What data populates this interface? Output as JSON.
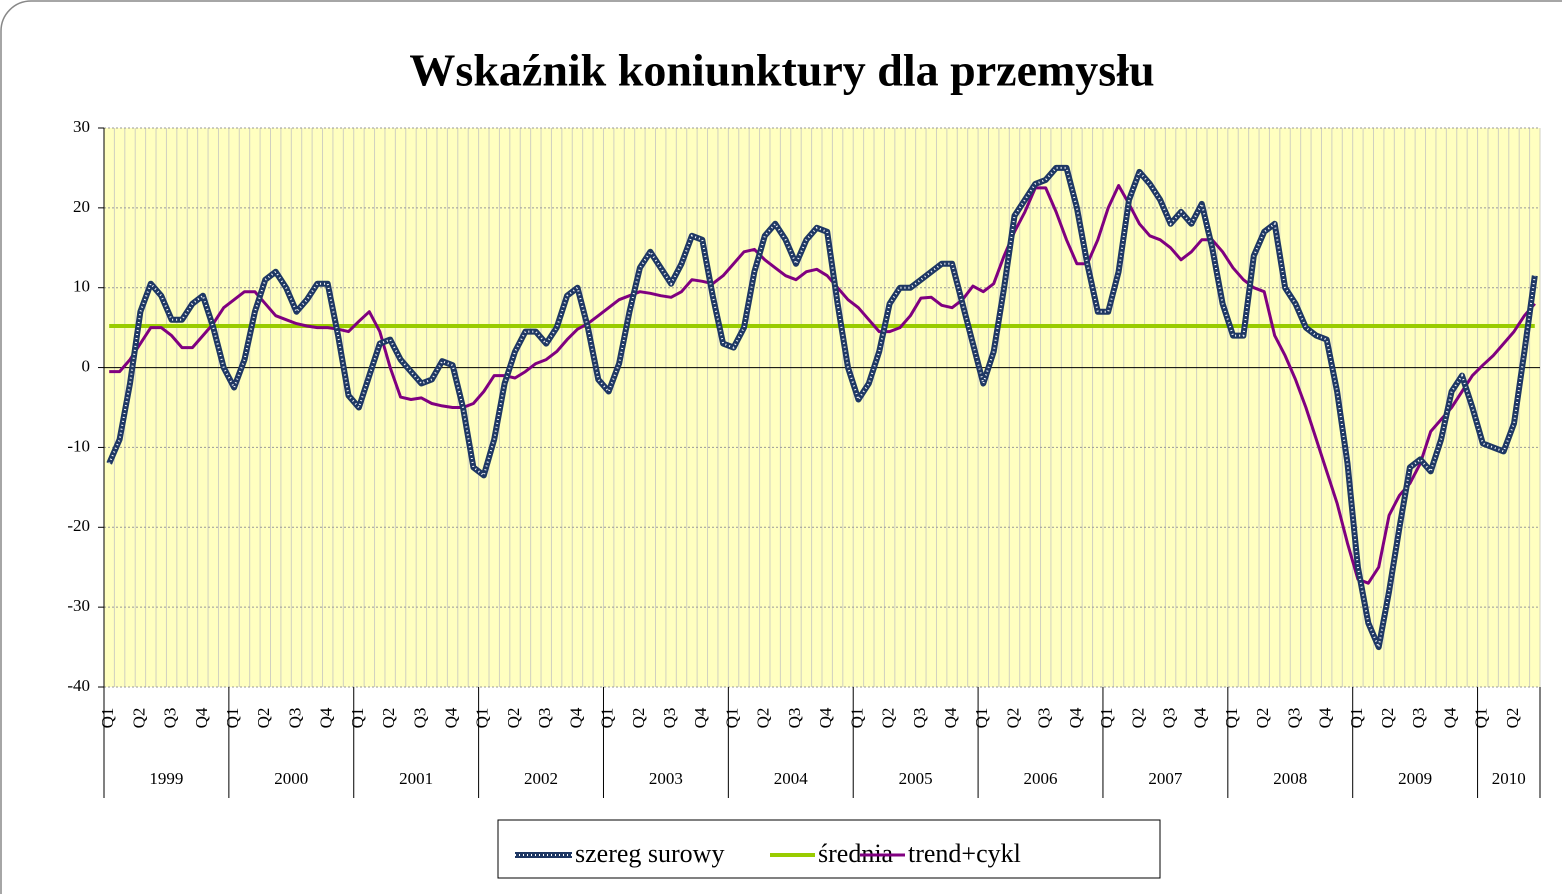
{
  "chart_data": {
    "type": "line",
    "title": "Wskaźnik koniunktury dla przemysłu",
    "categories": [
      "Q1",
      null,
      null,
      "Q2",
      null,
      null,
      "Q3",
      null,
      null,
      "Q4",
      null,
      null,
      "Q1",
      null,
      null,
      "Q2",
      null,
      null,
      "Q3",
      null,
      null,
      "Q4",
      null,
      null,
      "Q1",
      null,
      null,
      "Q2",
      null,
      null,
      "Q3",
      null,
      null,
      "Q4",
      null,
      null,
      "Q1",
      null,
      null,
      "Q2",
      null,
      null,
      "Q3",
      null,
      null,
      "Q4",
      null,
      null,
      "Q1",
      null,
      null,
      "Q2",
      null,
      null,
      "Q3",
      null,
      null,
      "Q4",
      null,
      null,
      "Q1",
      null,
      null,
      "Q2",
      null,
      null,
      "Q3",
      null,
      null,
      "Q4",
      null,
      null,
      "Q1",
      null,
      null,
      "Q2",
      null,
      null,
      "Q3",
      null,
      null,
      "Q4",
      null,
      null,
      "Q1",
      null,
      null,
      "Q2",
      null,
      null,
      "Q3",
      null,
      null,
      "Q4",
      null,
      null,
      "Q1",
      null,
      null,
      "Q2",
      null,
      null,
      "Q3",
      null,
      null,
      "Q4",
      null,
      null,
      "Q1",
      null,
      null,
      "Q2",
      null,
      null,
      "Q3",
      null,
      null,
      "Q4",
      null,
      null,
      "Q1",
      null,
      null,
      "Q2",
      null,
      null,
      "Q3",
      null,
      null,
      "Q4",
      null,
      null,
      "Q1",
      null,
      null,
      "Q2",
      null,
      null
    ],
    "years": [
      "1999",
      "2000",
      "2001",
      "2002",
      "2003",
      "2004",
      "2005",
      "2006",
      "2007",
      "2008",
      "2009",
      "2010"
    ],
    "series": [
      {
        "name": "szereg surowy",
        "color": "#1f3864",
        "values": [
          -12,
          -9,
          -2,
          7,
          10.5,
          9,
          6,
          6,
          8,
          9,
          5,
          0,
          -2.5,
          1,
          7,
          11,
          12,
          10,
          7,
          8.5,
          10.5,
          10.5,
          4,
          -3.5,
          -5,
          -1,
          3,
          3.5,
          1,
          -0.5,
          -2,
          -1.5,
          0.8,
          0.3,
          -5,
          -12.5,
          -13.5,
          -9,
          -2,
          2,
          4.5,
          4.5,
          3,
          5,
          9,
          10,
          5,
          -1.5,
          -3,
          0.5,
          7,
          12.5,
          14.5,
          12.5,
          10.5,
          13,
          16.5,
          16,
          9,
          3,
          2.5,
          5,
          12,
          16.5,
          18,
          16,
          13,
          16,
          17.5,
          17,
          8,
          0,
          -4,
          -2,
          2,
          8,
          10,
          10,
          11,
          12,
          13,
          13,
          8,
          3,
          -2,
          2,
          10,
          19,
          21,
          23,
          23.5,
          25,
          25,
          20,
          13,
          7,
          7,
          12,
          21,
          24.5,
          23,
          21,
          18,
          19.5,
          18,
          20.5,
          15,
          8,
          4,
          4,
          14,
          17,
          18,
          10,
          8,
          5,
          4,
          3.5,
          -3,
          -12,
          -25,
          -32,
          -35,
          -28,
          -20,
          -12.5,
          -11.5,
          -13,
          -9,
          -3,
          -1,
          -5,
          -9.5,
          -10,
          -10.5,
          -7,
          2,
          11.5
        ]
      },
      {
        "name": "średnia",
        "color": "#99cc00",
        "values": [
          5.2,
          5.2,
          5.2,
          5.2,
          5.2,
          5.2,
          5.2,
          5.2,
          5.2,
          5.2,
          5.2,
          5.2,
          5.2,
          5.2,
          5.2,
          5.2,
          5.2,
          5.2,
          5.2,
          5.2,
          5.2,
          5.2,
          5.2,
          5.2,
          5.2,
          5.2,
          5.2,
          5.2,
          5.2,
          5.2,
          5.2,
          5.2,
          5.2,
          5.2,
          5.2,
          5.2,
          5.2,
          5.2,
          5.2,
          5.2,
          5.2,
          5.2,
          5.2,
          5.2,
          5.2,
          5.2,
          5.2,
          5.2,
          5.2,
          5.2,
          5.2,
          5.2,
          5.2,
          5.2,
          5.2,
          5.2,
          5.2,
          5.2,
          5.2,
          5.2,
          5.2,
          5.2,
          5.2,
          5.2,
          5.2,
          5.2,
          5.2,
          5.2,
          5.2,
          5.2,
          5.2,
          5.2,
          5.2,
          5.2,
          5.2,
          5.2,
          5.2,
          5.2,
          5.2,
          5.2,
          5.2,
          5.2,
          5.2,
          5.2,
          5.2,
          5.2,
          5.2,
          5.2,
          5.2,
          5.2,
          5.2,
          5.2,
          5.2,
          5.2,
          5.2,
          5.2,
          5.2,
          5.2,
          5.2,
          5.2,
          5.2,
          5.2,
          5.2,
          5.2,
          5.2,
          5.2,
          5.2,
          5.2,
          5.2,
          5.2,
          5.2,
          5.2,
          5.2,
          5.2,
          5.2,
          5.2,
          5.2,
          5.2,
          5.2,
          5.2,
          5.2,
          5.2,
          5.2,
          5.2,
          5.2,
          5.2,
          5.2,
          5.2,
          5.2,
          5.2,
          5.2,
          5.2,
          5.2,
          5.2,
          5.2,
          5.2,
          5.2,
          5.2
        ]
      },
      {
        "name": "trend+cykl",
        "color": "#800080",
        "values": [
          -0.5,
          -0.5,
          1,
          3,
          5,
          5,
          4,
          2.5,
          2.5,
          4,
          5.5,
          7.5,
          8.5,
          9.5,
          9.5,
          8,
          6.5,
          6,
          5.5,
          5.2,
          5,
          5,
          4.8,
          4.5,
          5.8,
          7,
          4.5,
          0,
          -3.7,
          -4,
          -3.8,
          -4.5,
          -4.8,
          -5,
          -5,
          -4.5,
          -3,
          -1,
          -1,
          -1.3,
          -0.5,
          0.5,
          1,
          2,
          3.5,
          4.8,
          5.5,
          6.5,
          7.5,
          8.5,
          9,
          9.5,
          9.3,
          9,
          8.8,
          9.5,
          11,
          10.8,
          10.5,
          11.5,
          13,
          14.5,
          14.8,
          13.5,
          12.5,
          11.5,
          11,
          12,
          12.3,
          11.5,
          10,
          8.5,
          7.5,
          6,
          4.5,
          4.5,
          5,
          6.5,
          8.7,
          8.8,
          7.8,
          7.5,
          8.5,
          10.2,
          9.5,
          10.5,
          14,
          17,
          19.5,
          22.5,
          22.5,
          19.5,
          16,
          13,
          13,
          16,
          20,
          22.8,
          20.5,
          18,
          16.5,
          16,
          15,
          13.5,
          14.5,
          16,
          16,
          14.5,
          12.5,
          11,
          10,
          9.5,
          4,
          1.5,
          -1.5,
          -5,
          -9,
          -13,
          -17,
          -22,
          -26.5,
          -27,
          -25,
          -18.5,
          -16,
          -14.5,
          -12,
          -8,
          -6.5,
          -5,
          -3,
          -1,
          0.3,
          1.5,
          3,
          4.5,
          6.5,
          8
        ]
      }
    ],
    "ylim": [
      -40,
      30
    ],
    "yticks": [
      -40,
      -30,
      -20,
      -10,
      0,
      10,
      20,
      30
    ],
    "grid": true
  }
}
